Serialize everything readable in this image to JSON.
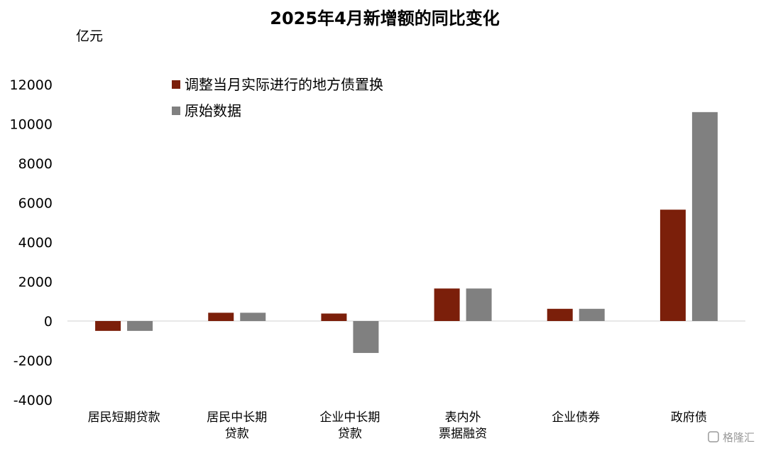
{
  "chart_data": {
    "type": "bar",
    "title": "2025年4月新增额的同比变化",
    "ylabel": "亿元",
    "ylim": [
      -4000,
      12000
    ],
    "yticks": [
      12000,
      10000,
      8000,
      6000,
      4000,
      2000,
      0,
      -2000,
      -4000
    ],
    "legend_position": "top-left",
    "grid": false,
    "categories": [
      [
        "居民短期贷款"
      ],
      [
        "居民中长期",
        "贷款"
      ],
      [
        "企业中长期",
        "贷款"
      ],
      [
        "表内外",
        "票据融资"
      ],
      [
        "企业债券"
      ],
      [
        "政府债"
      ]
    ],
    "series": [
      {
        "name": "调整当月实际进行的地方债置换",
        "color": "#7B1F0A",
        "values": [
          -500,
          420,
          380,
          1650,
          620,
          5650
        ]
      },
      {
        "name": "原始数据",
        "color": "#808080",
        "values": [
          -500,
          420,
          -1620,
          1650,
          620,
          10600
        ]
      }
    ]
  },
  "watermark": "格隆汇"
}
